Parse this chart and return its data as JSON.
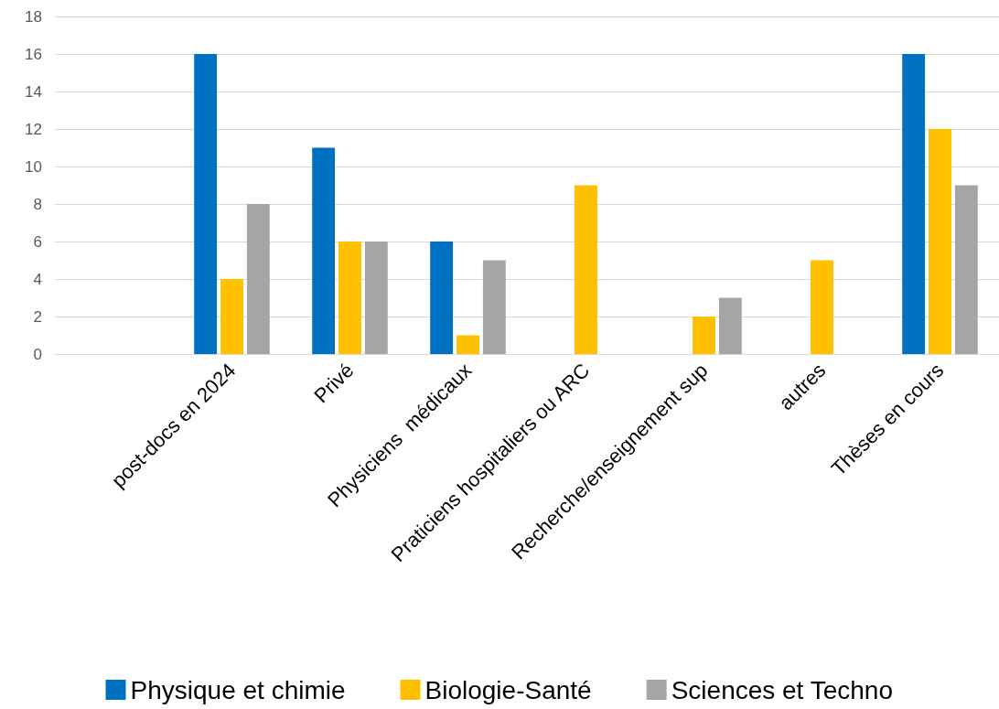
{
  "chart_data": {
    "type": "bar",
    "categories": [
      null,
      "post-docs en 2024",
      "Privé",
      "Physiciens  médicaux",
      "Praticiens hospitaliers ou ARC",
      "Recherche/enseignement sup",
      "autres",
      "Thèses en cours"
    ],
    "series": [
      {
        "name": "Physique et chimie",
        "color": "#0070c0",
        "values": [
          null,
          16,
          11,
          6,
          0,
          0,
          0,
          16
        ]
      },
      {
        "name": "Biologie-Santé",
        "color": "#ffc000",
        "values": [
          null,
          4,
          6,
          1,
          9,
          2,
          5,
          12
        ]
      },
      {
        "name": "Sciences et Techno",
        "color": "#a5a5a5",
        "values": [
          null,
          8,
          6,
          5,
          0,
          3,
          0,
          9
        ]
      }
    ],
    "ylim": [
      0,
      18
    ],
    "yticks": [
      0,
      2,
      4,
      6,
      8,
      10,
      12,
      14,
      16,
      18
    ],
    "grid": "y",
    "legend": "bottom"
  }
}
